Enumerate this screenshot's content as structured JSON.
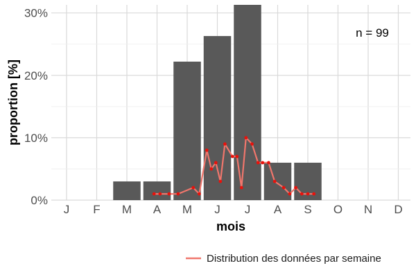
{
  "chart_data": {
    "type": "bar",
    "categories": [
      "J",
      "F",
      "M",
      "A",
      "M",
      "J",
      "J",
      "A",
      "S",
      "O",
      "N",
      "D"
    ],
    "values": [
      0,
      0,
      3,
      3,
      22.2,
      26.3,
      31.3,
      6,
      6,
      0,
      0,
      0
    ],
    "xlabel": "mois",
    "ylabel": "proportion [%]",
    "ylim": [
      0,
      31.3
    ],
    "yticks": [
      0,
      10,
      20,
      30
    ],
    "ytick_labels": [
      "0%",
      "10%",
      "20%",
      "30%"
    ],
    "annotation": "n = 99",
    "grid": true,
    "legend_position": "bottom-right",
    "colors": {
      "bars": "#595959",
      "line": "#f0766c",
      "points": "#e8120c",
      "grid": "#d9d9d9"
    },
    "overlay": {
      "type": "line",
      "name": "Distribution des données par semaine",
      "x": [
        2.9,
        3.1,
        3.4,
        3.7,
        4.2,
        4.4,
        4.65,
        4.8,
        4.95,
        5.1,
        5.25,
        5.5,
        5.65,
        5.8,
        5.95,
        6.15,
        6.35,
        6.5,
        6.7,
        6.9,
        7.2,
        7.4,
        7.6,
        7.8,
        8.0,
        8.2
      ],
      "y": [
        1,
        1,
        1,
        1,
        2,
        1,
        8,
        5,
        6,
        3,
        9,
        7,
        7,
        2,
        10,
        9,
        6,
        6,
        6,
        3,
        2,
        1,
        2,
        1,
        1,
        1
      ]
    }
  }
}
